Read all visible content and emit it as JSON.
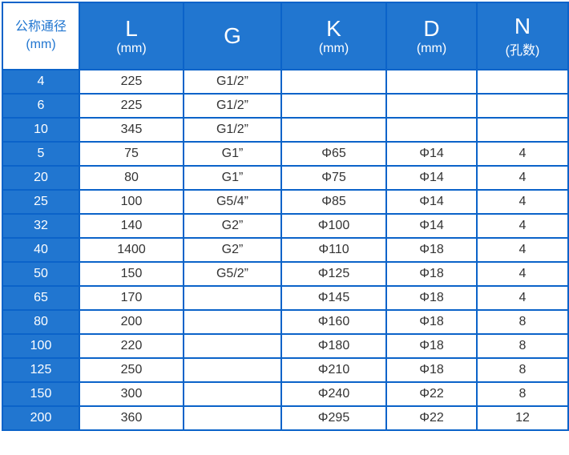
{
  "header": {
    "dn": {
      "title": "公称通径",
      "unit": "(mm)"
    },
    "cols": [
      {
        "title": "L",
        "unit": "(mm)"
      },
      {
        "title": "G",
        "unit": ""
      },
      {
        "title": "K",
        "unit": "(mm)"
      },
      {
        "title": "D",
        "unit": "(mm)"
      },
      {
        "title": "N",
        "unit": "(孔数)"
      }
    ]
  },
  "rows": [
    [
      "4",
      "225",
      "G1/2”",
      "",
      "",
      ""
    ],
    [
      "6",
      "225",
      "G1/2”",
      "",
      "",
      ""
    ],
    [
      "10",
      "345",
      "G1/2”",
      "",
      "",
      ""
    ],
    [
      "5",
      "75",
      "G1”",
      "Φ65",
      "Φ14",
      "4"
    ],
    [
      "20",
      "80",
      "G1”",
      "Φ75",
      "Φ14",
      "4"
    ],
    [
      "25",
      "100",
      "G5/4”",
      "Φ85",
      "Φ14",
      "4"
    ],
    [
      "32",
      "140",
      "G2”",
      "Φ100",
      "Φ14",
      "4"
    ],
    [
      "40",
      "1400",
      "G2”",
      "Φ110",
      "Φ18",
      "4"
    ],
    [
      "50",
      "150",
      "G5/2”",
      "Φ125",
      "Φ18",
      "4"
    ],
    [
      "65",
      "170",
      "",
      "Φ145",
      "Φ18",
      "4"
    ],
    [
      "80",
      "200",
      "",
      "Φ160",
      "Φ18",
      "8"
    ],
    [
      "100",
      "220",
      "",
      "Φ180",
      "Φ18",
      "8"
    ],
    [
      "125",
      "250",
      "",
      "Φ210",
      "Φ18",
      "8"
    ],
    [
      "150",
      "300",
      "",
      "Φ240",
      "Φ22",
      "8"
    ],
    [
      "200",
      "360",
      "",
      "Φ295",
      "Φ22",
      "12"
    ]
  ],
  "colors": {
    "header_blue": "#2176d0",
    "border_blue": "#0b63c9"
  }
}
